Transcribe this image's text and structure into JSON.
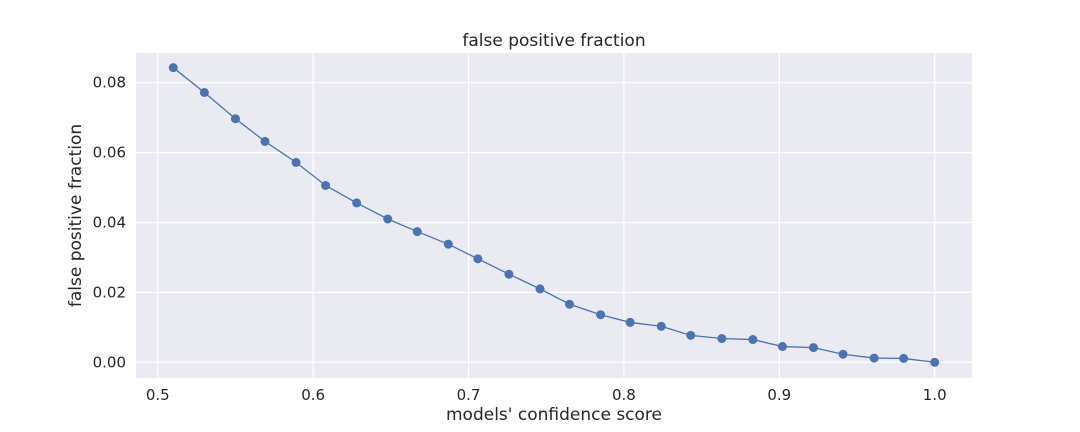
{
  "chart_data": {
    "type": "line",
    "title": "false positive fraction",
    "xlabel": "models' confidence score",
    "ylabel": "false positive fraction",
    "xlim": [
      0.486,
      1.024
    ],
    "ylim": [
      -0.0045,
      0.0885
    ],
    "xticks": [
      0.5,
      0.6,
      0.7,
      0.8,
      0.9,
      1.0
    ],
    "xtick_labels": [
      "0.5",
      "0.6",
      "0.7",
      "0.8",
      "0.9",
      "1.0"
    ],
    "yticks": [
      0.0,
      0.02,
      0.04,
      0.06,
      0.08
    ],
    "ytick_labels": [
      "0.00",
      "0.02",
      "0.04",
      "0.06",
      "0.08"
    ],
    "grid": true,
    "series": [
      {
        "color": "#4c72b0",
        "marker": "circle",
        "x": [
          0.51,
          0.53,
          0.55,
          0.569,
          0.589,
          0.608,
          0.628,
          0.648,
          0.667,
          0.687,
          0.706,
          0.726,
          0.746,
          0.765,
          0.785,
          0.804,
          0.824,
          0.843,
          0.863,
          0.883,
          0.902,
          0.922,
          0.941,
          0.961,
          0.98,
          1.0
        ],
        "y": [
          0.0843,
          0.0772,
          0.0697,
          0.0632,
          0.0572,
          0.0506,
          0.0456,
          0.041,
          0.0374,
          0.0338,
          0.0296,
          0.0252,
          0.021,
          0.0166,
          0.0136,
          0.0114,
          0.0103,
          0.0077,
          0.0068,
          0.0065,
          0.0045,
          0.0042,
          0.0023,
          0.0012,
          0.0011,
          0.0
        ]
      }
    ]
  }
}
